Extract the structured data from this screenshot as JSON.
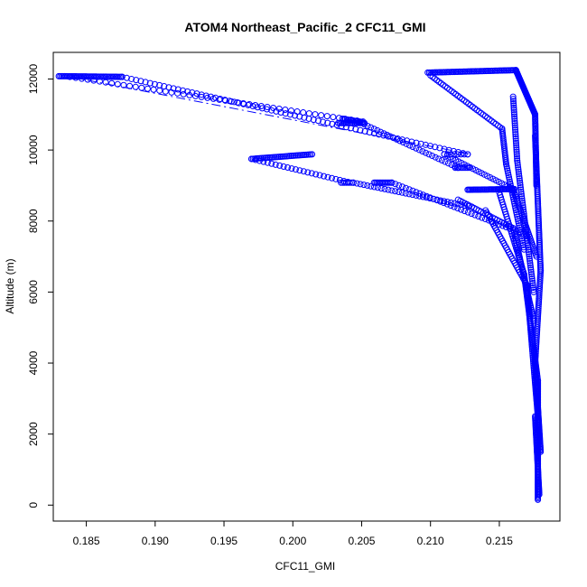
{
  "chart_data": {
    "type": "scatter",
    "title": "ATOM4 Northeast_Pacific_2 CFC11_GMI",
    "xlabel": "CFC11_GMI",
    "ylabel": "Altitude (m)",
    "xlim": [
      0.1826,
      0.2194
    ],
    "ylim": [
      -450,
      12750
    ],
    "xticks": [
      0.185,
      0.19,
      0.195,
      0.2,
      0.205,
      0.21,
      0.215
    ],
    "xtick_labels": [
      "0.185",
      "0.190",
      "0.195",
      "0.200",
      "0.205",
      "0.210",
      "0.215"
    ],
    "yticks": [
      0,
      2000,
      4000,
      6000,
      8000,
      10000,
      12000
    ],
    "ytick_labels": [
      "0",
      "2000",
      "4000",
      "6000",
      "8000",
      "10000",
      "12000"
    ],
    "marker": "open-circle",
    "color": "#0000ff",
    "grid": false,
    "legend": "none",
    "series": [
      {
        "segments": [
          {
            "x": [
              0.183,
              0.1876
            ],
            "y": [
              12080,
              12060
            ],
            "n": 45
          },
          {
            "x": [
              0.1876,
              0.2127
            ],
            "y": [
              12060,
              9880
            ],
            "n": 75
          },
          {
            "x": [
              0.2127,
              0.211
            ],
            "y": [
              9880,
              9880
            ],
            "n": 8
          },
          {
            "x": [
              0.211,
              0.216
            ],
            "y": [
              9880,
              8900
            ],
            "n": 25
          },
          {
            "x": [
              0.1838,
              0.2051
            ],
            "y": [
              12060,
              10800
            ],
            "n": 50
          },
          {
            "x": [
              0.2033,
              0.2052
            ],
            "y": [
              10760,
              10760
            ],
            "n": 18
          },
          {
            "x": [
              0.2036,
              0.205
            ],
            "y": [
              10880,
              10790
            ],
            "n": 14
          },
          {
            "x": [
              0.2052,
              0.212
            ],
            "y": [
              10720,
              9500
            ],
            "n": 30
          },
          {
            "x": [
              0.2118,
              0.2128
            ],
            "y": [
              9500,
              9500
            ],
            "n": 8
          },
          {
            "x": [
              0.197,
              0.2014
            ],
            "y": [
              9750,
              9880
            ],
            "n": 40
          },
          {
            "x": [
              0.197,
              0.204
            ],
            "y": [
              9750,
              9100
            ],
            "n": 25
          },
          {
            "x": [
              0.2035,
              0.2044
            ],
            "y": [
              9080,
              9080
            ],
            "n": 8
          },
          {
            "x": [
              0.2044,
              0.213
            ],
            "y": [
              9080,
              8400
            ],
            "n": 35
          },
          {
            "x": [
              0.2059,
              0.2072
            ],
            "y": [
              9080,
              9080
            ],
            "n": 14
          },
          {
            "x": [
              0.2072,
              0.217
            ],
            "y": [
              9080,
              7600
            ],
            "n": 40
          },
          {
            "x": [
              0.2127,
              0.2161
            ],
            "y": [
              8880,
              8900
            ],
            "n": 40
          },
          {
            "x": [
              0.2098,
              0.2162
            ],
            "y": [
              12180,
              12250
            ],
            "n": 60
          },
          {
            "x": [
              0.2162,
              0.2176
            ],
            "y": [
              12250,
              11000
            ],
            "n": 60
          },
          {
            "x": [
              0.2176,
              0.2177
            ],
            "y": [
              11000,
              9000
            ],
            "n": 50
          },
          {
            "x": [
              0.21,
              0.2152
            ],
            "y": [
              12100,
              10600
            ],
            "n": 35
          },
          {
            "x": [
              0.2152,
              0.2155
            ],
            "y": [
              10600,
              9600
            ],
            "n": 20
          },
          {
            "x": [
              0.2155,
              0.2168
            ],
            "y": [
              9600,
              7200
            ],
            "n": 40
          },
          {
            "x": [
              0.216,
              0.2163
            ],
            "y": [
              11500,
              9700
            ],
            "n": 30
          },
          {
            "x": [
              0.2163,
              0.2175
            ],
            "y": [
              9700,
              6000
            ],
            "n": 60
          },
          {
            "x": [
              0.2176,
              0.218
            ],
            "y": [
              10400,
              6600
            ],
            "n": 80
          },
          {
            "x": [
              0.212,
              0.216
            ],
            "y": [
              8600,
              7800
            ],
            "n": 25
          },
          {
            "x": [
              0.216,
              0.2175
            ],
            "y": [
              7800,
              5200
            ],
            "n": 45
          },
          {
            "x": [
              0.215,
              0.2168
            ],
            "y": [
              8800,
              6500
            ],
            "n": 35
          },
          {
            "x": [
              0.2168,
              0.2178
            ],
            "y": [
              6500,
              3500
            ],
            "n": 60
          },
          {
            "x": [
              0.216,
              0.2177
            ],
            "y": [
              8900,
              7000
            ],
            "n": 35
          },
          {
            "x": [
              0.214,
              0.217
            ],
            "y": [
              8300,
              6200
            ],
            "n": 35
          },
          {
            "x": [
              0.217,
              0.2178
            ],
            "y": [
              6200,
              2500
            ],
            "n": 70
          },
          {
            "x": [
              0.218,
              0.2176
            ],
            "y": [
              6600,
              4000
            ],
            "n": 50
          },
          {
            "x": [
              0.2176,
              0.218
            ],
            "y": [
              4000,
              1500
            ],
            "n": 70
          },
          {
            "x": [
              0.2178,
              0.2178
            ],
            "y": [
              3500,
              150
            ],
            "n": 90
          },
          {
            "x": [
              0.2176,
              0.2179
            ],
            "y": [
              2500,
              300
            ],
            "n": 60
          }
        ]
      }
    ],
    "connecting_line": {
      "x": [
        0.1838,
        0.213
      ],
      "y": [
        12060,
        9880
      ]
    }
  }
}
